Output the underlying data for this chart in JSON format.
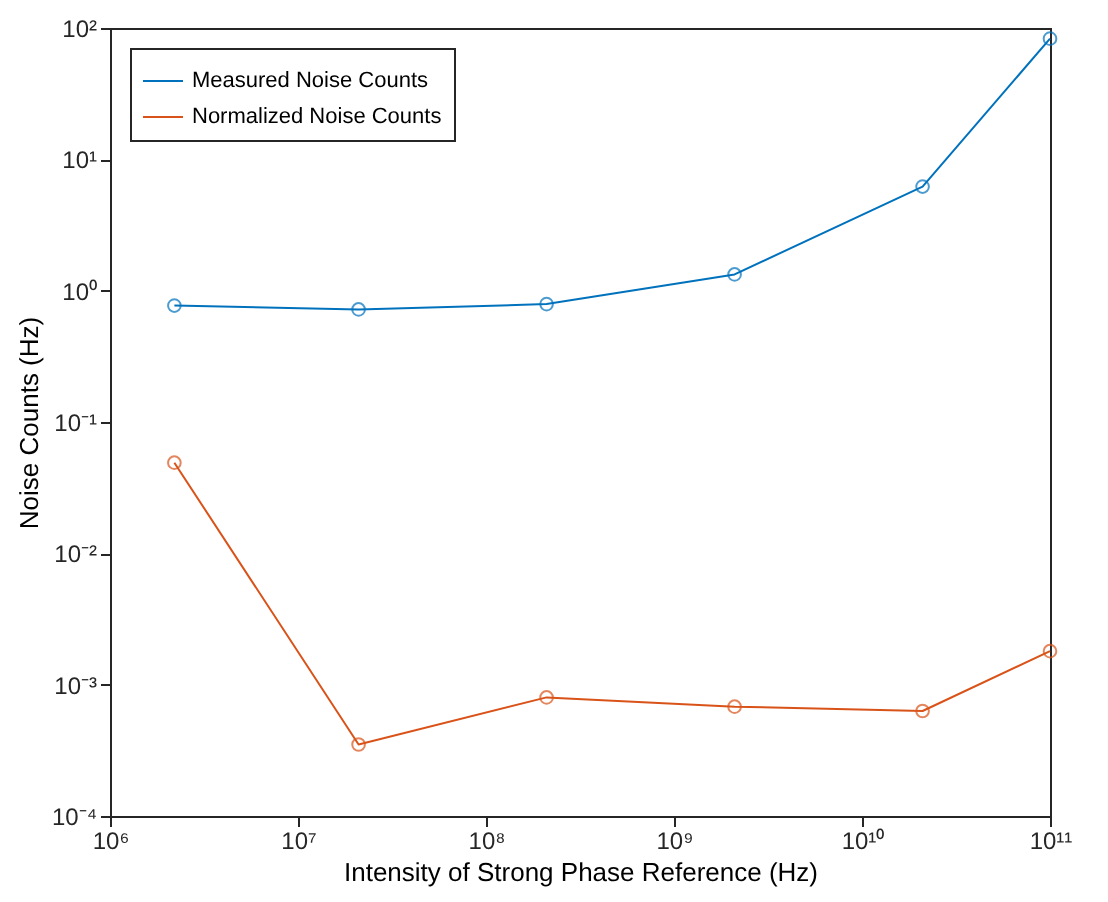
{
  "chart_data": {
    "type": "line",
    "xlabel": "Intensity of Strong Phase Reference (Hz)",
    "ylabel": "Noise Counts (Hz)",
    "x": [
      2200000.0,
      21000000.0,
      210000000.0,
      2100000000.0,
      21000000000.0,
      100000000000.0
    ],
    "series": [
      {
        "name": "Measured Noise Counts",
        "color": "#0072bd",
        "values": [
          0.77,
          0.72,
          0.79,
          1.33,
          6.2,
          83
        ]
      },
      {
        "name": "Normalized Noise Counts",
        "color": "#d95319",
        "values": [
          0.049,
          0.00035,
          0.0008,
          0.00068,
          0.00063,
          0.0018
        ]
      }
    ],
    "log": "xy",
    "xlim": [
      1000000.0,
      100000000000.0
    ],
    "ylim": [
      0.0001,
      100
    ],
    "xticks": [
      {
        "value": 1000000.0,
        "label": "10⁶"
      },
      {
        "value": 10000000.0,
        "label": "10⁷"
      },
      {
        "value": 100000000.0,
        "label": "10⁸"
      },
      {
        "value": 1000000000.0,
        "label": "10⁹"
      },
      {
        "value": 10000000000.0,
        "label": "10¹⁰"
      },
      {
        "value": 100000000000.0,
        "label": "10¹¹"
      }
    ],
    "yticks": [
      {
        "value": 0.0001,
        "label": "10⁻⁴"
      },
      {
        "value": 0.001,
        "label": "10⁻³"
      },
      {
        "value": 0.01,
        "label": "10⁻²"
      },
      {
        "value": 0.1,
        "label": "10⁻¹"
      },
      {
        "value": 1,
        "label": "10⁰"
      },
      {
        "value": 10,
        "label": "10¹"
      },
      {
        "value": 100,
        "label": "10²"
      }
    ],
    "marker": "circle",
    "legend": "top left",
    "grid": false
  }
}
